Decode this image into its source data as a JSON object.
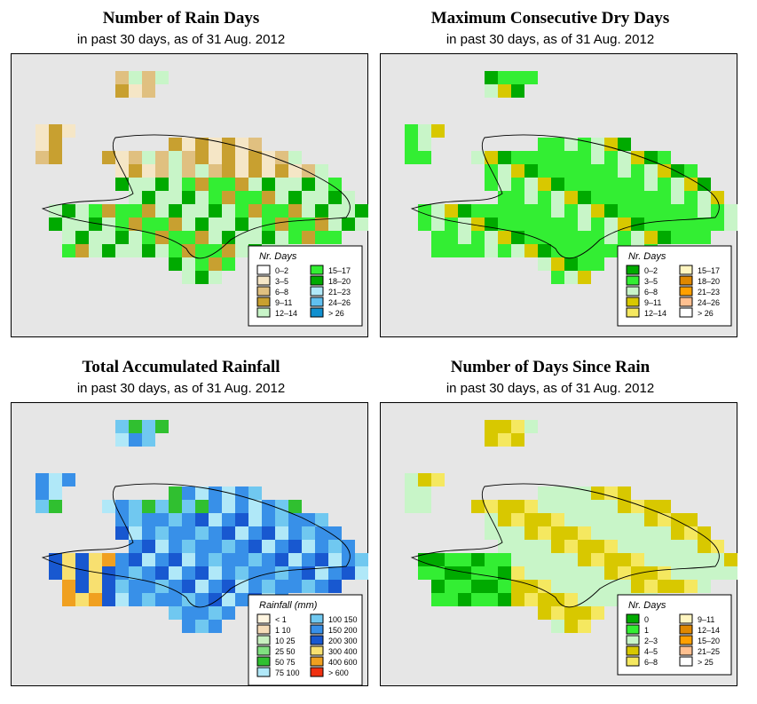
{
  "chart_data": [
    {
      "type": "heatmap",
      "title": "Number of Rain Days",
      "subtitle": "in past 30 days, as of  31 Aug. 2012",
      "legend_title": "Nr. Days",
      "legend": [
        {
          "label": "0–2",
          "color": "#ffffff"
        },
        {
          "label": "3–5",
          "color": "#f5e6c6"
        },
        {
          "label": "6–8",
          "color": "#e0c080"
        },
        {
          "label": "9–11",
          "color": "#c8a030"
        },
        {
          "label": "12–14",
          "color": "#c8f5c8"
        },
        {
          "label": "15–17",
          "color": "#33ee33"
        },
        {
          "label": "18–20",
          "color": "#00aa00"
        },
        {
          "label": "21–23",
          "color": "#b0e8f8"
        },
        {
          "label": "24–26",
          "color": "#60c0f0"
        },
        {
          "label": "> 26",
          "color": "#1090d0"
        }
      ]
    },
    {
      "type": "heatmap",
      "title": "Maximum Consecutive Dry Days",
      "subtitle": "in past 30 days, as of  31 Aug. 2012",
      "legend_title": "Nr. Days",
      "legend": [
        {
          "label": "0–2",
          "color": "#00aa00"
        },
        {
          "label": "3–5",
          "color": "#33ee33"
        },
        {
          "label": "6–8",
          "color": "#c8f5c8"
        },
        {
          "label": "9–11",
          "color": "#d8c800"
        },
        {
          "label": "12–14",
          "color": "#f5e860"
        },
        {
          "label": "15–17",
          "color": "#fff5c0"
        },
        {
          "label": "18–20",
          "color": "#e08800"
        },
        {
          "label": "21–23",
          "color": "#ffa000"
        },
        {
          "label": "24–26",
          "color": "#ffc090"
        },
        {
          "label": "> 26",
          "color": "#ffffff"
        }
      ]
    },
    {
      "type": "heatmap",
      "title": "Total Accumulated Rainfall",
      "subtitle": "in past 30 days, as of  31 Aug. 2012",
      "legend_title": "Rainfall (mm)",
      "legend": [
        {
          "label": "< 1",
          "color": "#fff5e0"
        },
        {
          "label": "1    10",
          "color": "#f5dcb8"
        },
        {
          "label": "10    25",
          "color": "#c8f0c0"
        },
        {
          "label": "25    50",
          "color": "#80e080"
        },
        {
          "label": "50    75",
          "color": "#30c030"
        },
        {
          "label": "75   100",
          "color": "#b0e8f8"
        },
        {
          "label": "100   150",
          "color": "#70c8f0"
        },
        {
          "label": "150   200",
          "color": "#3890e8"
        },
        {
          "label": "200   300",
          "color": "#1858d0"
        },
        {
          "label": "300   400",
          "color": "#f8e070"
        },
        {
          "label": "400   600",
          "color": "#f0a020"
        },
        {
          "label": "> 600",
          "color": "#f03010"
        }
      ]
    },
    {
      "type": "heatmap",
      "title": "Number of Days Since Rain",
      "subtitle": "in past 30 days, as of  31 Aug. 2012",
      "legend_title": "Nr. Days",
      "legend": [
        {
          "label": "0",
          "color": "#00aa00"
        },
        {
          "label": "1",
          "color": "#33ee33"
        },
        {
          "label": "2–3",
          "color": "#c8f5c8"
        },
        {
          "label": "4–5",
          "color": "#d8c800"
        },
        {
          "label": "6–8",
          "color": "#f5e860"
        },
        {
          "label": "9–11",
          "color": "#fff5c0"
        },
        {
          "label": "12–14",
          "color": "#e08800"
        },
        {
          "label": "15–20",
          "color": "#ffa000"
        },
        {
          "label": "21–25",
          "color": "#ffc090"
        },
        {
          "label": "> 25",
          "color": "#ffffff"
        }
      ]
    }
  ]
}
